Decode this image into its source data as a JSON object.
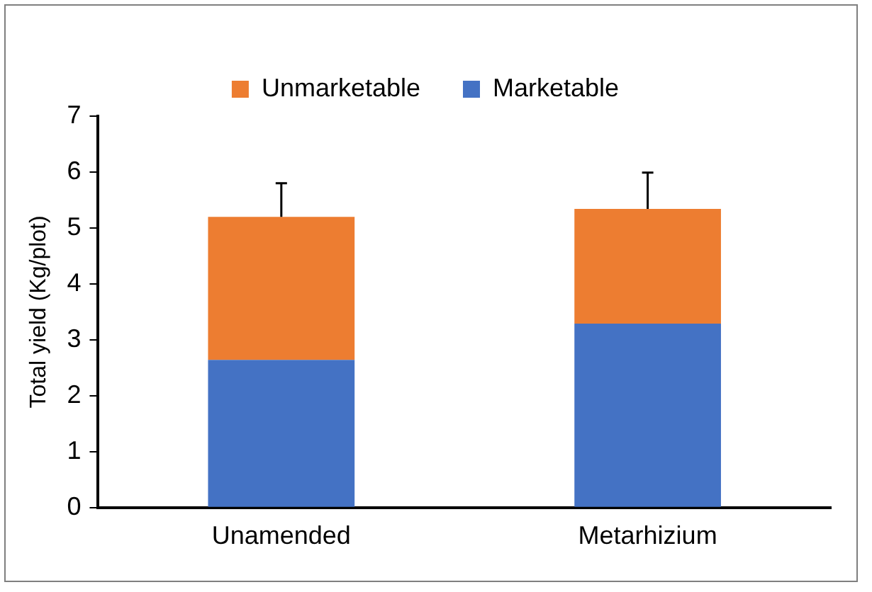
{
  "chart_data": {
    "type": "bar",
    "stacked": true,
    "ylabel": "Total yield (Kg/plot)",
    "categories": [
      "Unamended",
      "Metarhizium"
    ],
    "series": [
      {
        "name": "Marketable",
        "color": "#4472c4",
        "values": [
          2.64,
          3.29
        ]
      },
      {
        "name": "Unmarketable",
        "color": "#ed7d31",
        "values": [
          2.56,
          2.05
        ],
        "errors": [
          [
            5.2,
            5.8
          ],
          [
            5.34,
            5.99
          ]
        ]
      }
    ],
    "ylim": [
      0,
      7
    ],
    "yticks": [
      0,
      1,
      2,
      3,
      4,
      5,
      6,
      7
    ],
    "grid": false,
    "legend": "top"
  }
}
